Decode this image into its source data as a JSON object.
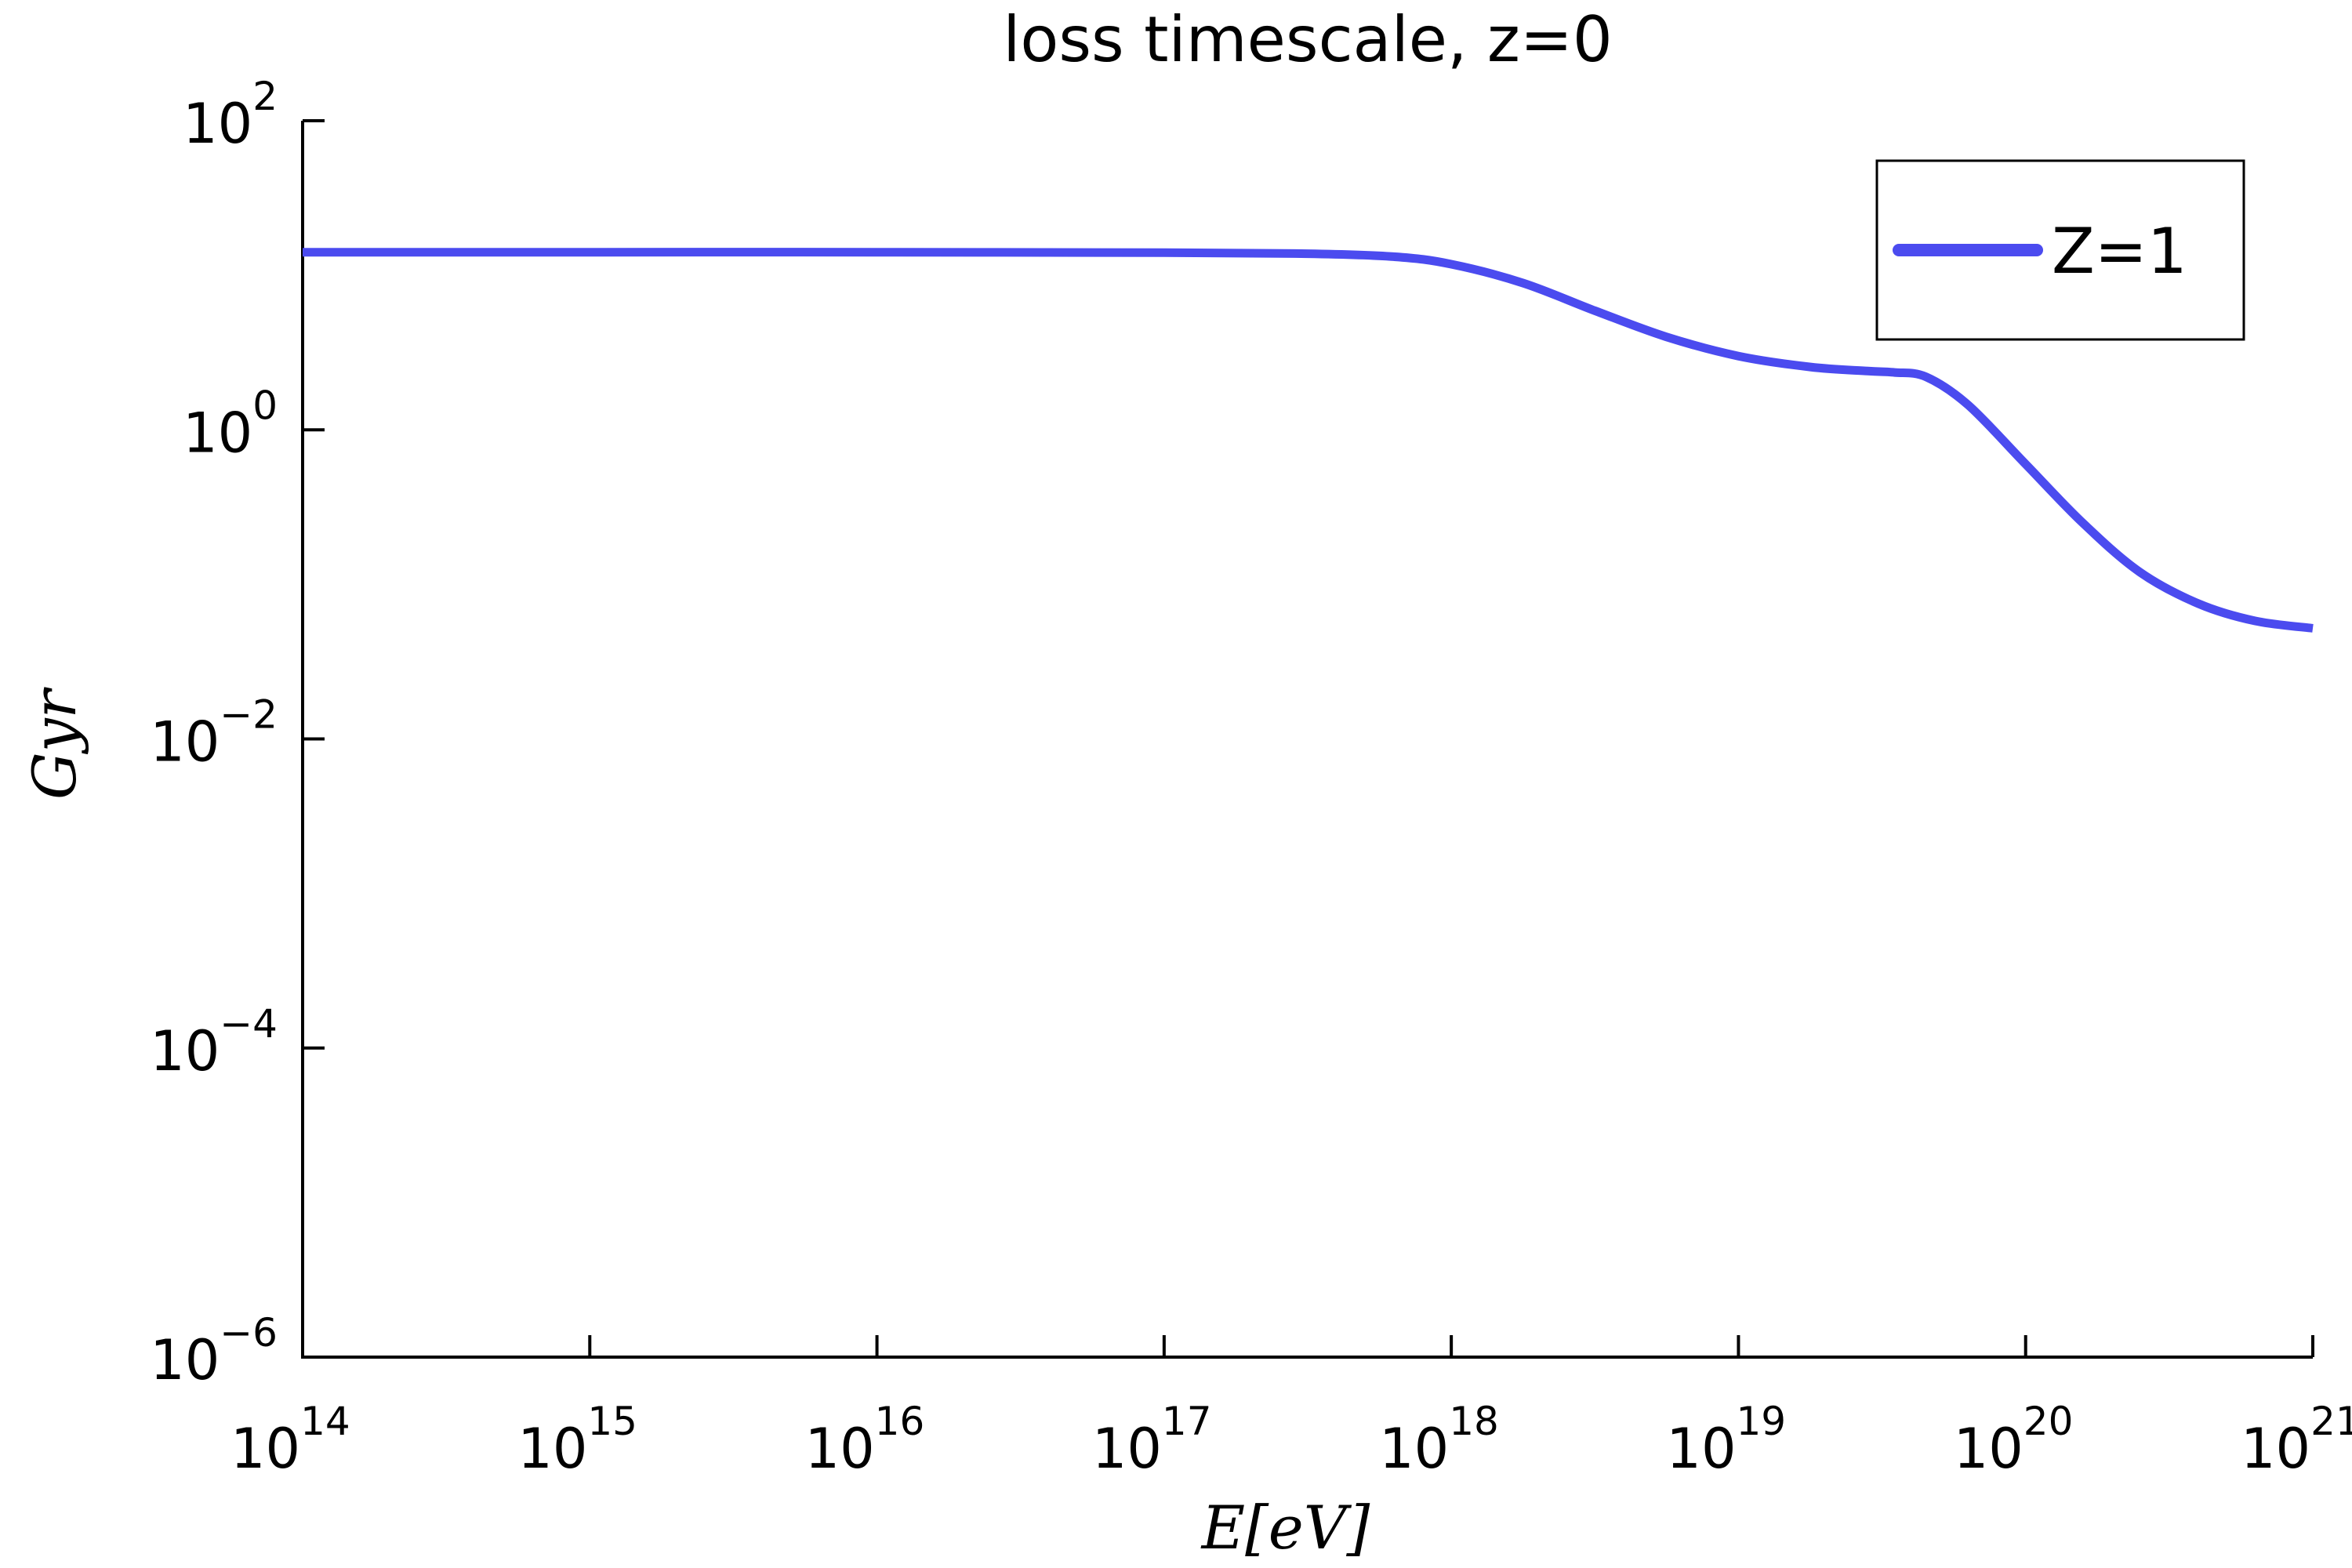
{
  "chart_data": {
    "type": "line",
    "title": "loss timescale, z=0",
    "xlabel": "E[eV]",
    "ylabel": "Gyr",
    "xscale": "log",
    "yscale": "log",
    "xlim": [
      100000000000000.0,
      1e+21
    ],
    "ylim": [
      1e-06,
      100
    ],
    "x_ticks": [
      {
        "base": "10",
        "exp": "14"
      },
      {
        "base": "10",
        "exp": "15"
      },
      {
        "base": "10",
        "exp": "16"
      },
      {
        "base": "10",
        "exp": "17"
      },
      {
        "base": "10",
        "exp": "18"
      },
      {
        "base": "10",
        "exp": "19"
      },
      {
        "base": "10",
        "exp": "20"
      },
      {
        "base": "10",
        "exp": "21"
      }
    ],
    "y_ticks": [
      {
        "base": "10",
        "exp": "2"
      },
      {
        "base": "10",
        "exp": "0"
      },
      {
        "base": "10",
        "exp": "−2"
      },
      {
        "base": "10",
        "exp": "−4"
      },
      {
        "base": "10",
        "exp": "−6"
      }
    ],
    "grid": false,
    "legend_position": "top-right",
    "series": [
      {
        "name": "Z=1",
        "color": "#4b4bef",
        "x": [
          100000000000000.0,
          1000000000000000.0,
          1e+16,
          1e+17,
          3.16e+17,
          6.3e+17,
          1e+18,
          1.78e+18,
          3.16e+18,
          5.6e+18,
          1e+19,
          1.78e+19,
          2.82e+19,
          3.5e+19,
          4.5e+19,
          6.3e+19,
          1e+20,
          1.58e+20,
          2.5e+20,
          4e+20,
          6.3e+20,
          1e+21
        ],
        "y": [
          14.1,
          14.1,
          14.1,
          14.0,
          13.8,
          13.2,
          11.8,
          8.9,
          5.9,
          4.0,
          3.0,
          2.55,
          2.4,
          2.35,
          2.2,
          1.45,
          0.6,
          0.25,
          0.12,
          0.075,
          0.058,
          0.052
        ]
      }
    ]
  }
}
